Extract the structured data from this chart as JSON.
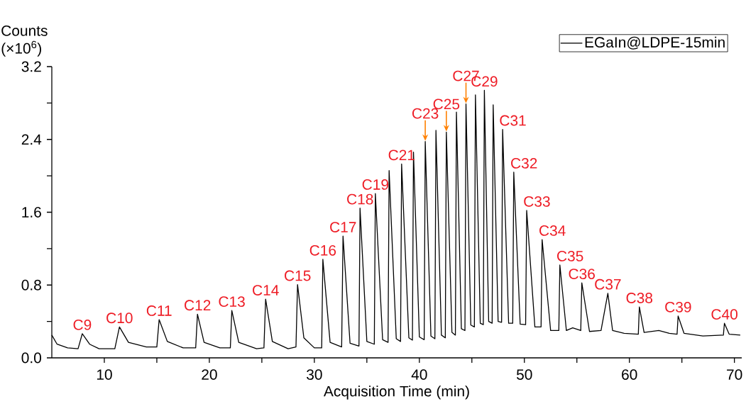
{
  "chart_data": {
    "type": "line",
    "xlabel": "Acquisition Time (min)",
    "ylabel": "Counts (×10$^{6}$)",
    "xlim": [
      5,
      70.7
    ],
    "ylim": [
      0,
      3.2
    ],
    "xticks": [
      10,
      {
        "value": 15,
        "label": null
      },
      20,
      {
        "value": 25,
        "label": null
      },
      30,
      {
        "value": 35,
        "label": null
      },
      40,
      {
        "value": 45,
        "label": null
      },
      50,
      {
        "value": 55,
        "label": null
      },
      60,
      {
        "value": 65,
        "label": null
      },
      70
    ],
    "yticks": [
      {
        "value": 0,
        "label": "0.0"
      },
      {
        "value": 0.4,
        "label": null
      },
      {
        "value": 0.8,
        "label": "0.8"
      },
      {
        "value": 1.2,
        "label": null
      },
      {
        "value": 1.6,
        "label": "1.6"
      },
      {
        "value": 2.0,
        "label": null
      },
      {
        "value": 2.4,
        "label": "2.4"
      },
      {
        "value": 2.8,
        "label": null
      },
      {
        "value": 3.2,
        "label": "3.2"
      }
    ],
    "legend": "top right",
    "grid": false,
    "marker": "none",
    "line_style": "solid",
    "series": [
      {
        "name": "EGaIn@LDPE-15min",
        "color": "#000000",
        "x": [
          5.0,
          5.5,
          6.5,
          7.5,
          7.9,
          8.6,
          9.5,
          11.0,
          11.44,
          12.3,
          14.0,
          15.0,
          15.22,
          16.0,
          17.5,
          18.7,
          18.87,
          19.5,
          21.0,
          22.0,
          22.14,
          22.8,
          24.5,
          25.2,
          25.36,
          26.0,
          27.5,
          28.25,
          28.4,
          29.0,
          30.0,
          30.7,
          30.81,
          31.5,
          32.6,
          32.73,
          33.4,
          34.25,
          34.35,
          35.0,
          35.71,
          35.81,
          36.5,
          37.02,
          37.12,
          37.8,
          38.21,
          38.31,
          39.0,
          39.34,
          39.44,
          40.0,
          40.46,
          40.56,
          41.1,
          41.48,
          41.58,
          42.1,
          42.47,
          42.57,
          43.1,
          43.43,
          43.53,
          44.0,
          44.34,
          44.44,
          44.9,
          45.24,
          45.34,
          45.8,
          46.09,
          46.19,
          46.6,
          46.93,
          47.03,
          47.5,
          47.83,
          47.93,
          48.5,
          48.89,
          48.99,
          49.6,
          50.12,
          50.22,
          51.0,
          51.59,
          51.69,
          52.5,
          53.28,
          53.38,
          54.0,
          54.6,
          55.37,
          55.47,
          56.2,
          57.3,
          57.95,
          58.4,
          59.5,
          60.85,
          60.95,
          61.4,
          62.8,
          63.8,
          64.54,
          64.64,
          65.2,
          67.0,
          68.95,
          69.05,
          69.5,
          70.56
        ],
        "values": [
          0.25,
          0.15,
          0.11,
          0.1,
          0.265,
          0.15,
          0.1,
          0.1,
          0.34,
          0.17,
          0.12,
          0.12,
          0.42,
          0.18,
          0.11,
          0.11,
          0.48,
          0.17,
          0.11,
          0.11,
          0.52,
          0.17,
          0.1,
          0.11,
          0.645,
          0.18,
          0.1,
          0.12,
          0.805,
          0.22,
          0.11,
          0.11,
          1.083,
          0.17,
          0.12,
          1.338,
          0.16,
          0.13,
          1.645,
          0.18,
          0.15,
          1.806,
          0.2,
          0.17,
          2.058,
          0.21,
          0.18,
          2.13,
          0.22,
          0.195,
          2.26,
          0.23,
          0.2,
          2.377,
          0.24,
          0.21,
          2.5,
          0.25,
          0.22,
          2.48,
          0.28,
          0.25,
          2.7,
          0.32,
          0.3,
          2.79,
          0.36,
          0.34,
          2.89,
          0.38,
          0.365,
          2.94,
          0.4,
          0.38,
          2.78,
          0.4,
          0.39,
          2.51,
          0.38,
          0.38,
          2.04,
          0.37,
          0.365,
          1.62,
          0.34,
          0.34,
          1.3,
          0.3,
          0.3,
          1.02,
          0.3,
          0.33,
          0.3,
          0.824,
          0.29,
          0.3,
          0.71,
          0.3,
          0.27,
          0.26,
          0.56,
          0.28,
          0.3,
          0.27,
          0.26,
          0.46,
          0.27,
          0.24,
          0.25,
          0.38,
          0.26,
          0.25
        ]
      }
    ],
    "annotations": [
      {
        "text": "C9",
        "x": 7.9,
        "y": 0.265
      },
      {
        "text": "C10",
        "x": 11.44,
        "y": 0.34
      },
      {
        "text": "C11",
        "x": 15.22,
        "y": 0.42
      },
      {
        "text": "C12",
        "x": 18.87,
        "y": 0.48
      },
      {
        "text": "C13",
        "x": 22.14,
        "y": 0.52
      },
      {
        "text": "C14",
        "x": 25.36,
        "y": 0.645
      },
      {
        "text": "C15",
        "x": 28.4,
        "y": 0.805
      },
      {
        "text": "C16",
        "x": 30.81,
        "y": 1.083
      },
      {
        "text": "C17",
        "x": 32.73,
        "y": 1.338
      },
      {
        "text": "C18",
        "x": 34.35,
        "y": 1.645
      },
      {
        "text": "C19",
        "x": 35.81,
        "y": 1.806
      },
      {
        "text": "C21",
        "x": 38.31,
        "y": 2.13
      },
      {
        "text": "C23",
        "x": 40.56,
        "y": 2.377
      },
      {
        "text": "C25",
        "x": 42.57,
        "y": 2.48
      },
      {
        "text": "C27",
        "x": 44.44,
        "y": 2.79
      },
      {
        "text": "C29",
        "x": 46.19,
        "y": 2.94
      },
      {
        "text": "C31",
        "x": 47.93,
        "y": 2.51
      },
      {
        "text": "C32",
        "x": 48.99,
        "y": 2.04
      },
      {
        "text": "C33",
        "x": 50.22,
        "y": 1.62
      },
      {
        "text": "C34",
        "x": 51.69,
        "y": 1.3
      },
      {
        "text": "C35",
        "x": 53.38,
        "y": 1.02
      },
      {
        "text": "C36",
        "x": 55.47,
        "y": 0.824
      },
      {
        "text": "C37",
        "x": 57.95,
        "y": 0.71
      },
      {
        "text": "C38",
        "x": 60.95,
        "y": 0.56
      },
      {
        "text": "C39",
        "x": 64.64,
        "y": 0.46
      },
      {
        "text": "C40",
        "x": 69.05,
        "y": 0.38
      }
    ]
  }
}
